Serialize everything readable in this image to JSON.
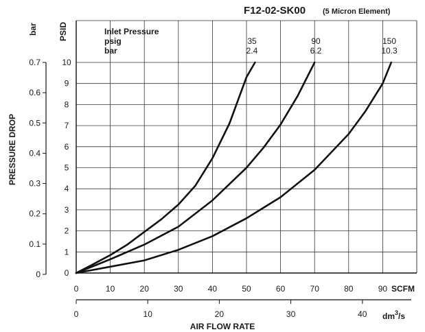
{
  "chart_data": {
    "type": "line",
    "title": "F12-02-SK00",
    "subtitle": "(5 Micron Element)",
    "xlabel": "AIR FLOW RATE",
    "x_unit_primary": "SCFM",
    "x_unit_secondary": "dm3/s",
    "ylabel": "PRESSURE DROP",
    "y_unit_left": "bar",
    "y_unit_right": "PSID",
    "xlim": [
      0,
      100
    ],
    "ylim": [
      0,
      10
    ],
    "x_ticks": [
      "0",
      "10",
      "20",
      "30",
      "40",
      "50",
      "60",
      "70",
      "80",
      "90"
    ],
    "x2_ticks": [
      "0",
      "10",
      "20",
      "30",
      "40"
    ],
    "y_ticks_psid": [
      "0",
      "1",
      "2",
      "3",
      "4",
      "5",
      "6",
      "7",
      "8",
      "9",
      "10"
    ],
    "y_ticks_bar": [
      "0",
      "0.1",
      "0.2",
      "0.3",
      "0.4",
      "0.5",
      "0.6",
      "0.7"
    ],
    "grid": true,
    "legend": {
      "heading": "Inlet Pressure",
      "row1": "psig",
      "row2": "bar"
    },
    "series": [
      {
        "psig": "35",
        "bar": "2.4",
        "x": [
          0,
          5,
          10,
          15,
          20,
          25,
          30,
          35,
          40,
          45,
          50,
          52.5
        ],
        "y": [
          0,
          0.42,
          0.85,
          1.35,
          1.95,
          2.55,
          3.25,
          4.15,
          5.45,
          7.1,
          9.3,
          10
        ]
      },
      {
        "psig": "90",
        "bar": "6.2",
        "x": [
          0,
          10,
          20,
          30,
          40,
          50,
          55,
          60,
          65,
          70
        ],
        "y": [
          0,
          0.65,
          1.35,
          2.2,
          3.45,
          5.0,
          5.95,
          7.05,
          8.4,
          10
        ]
      },
      {
        "psig": "150",
        "bar": "10.3",
        "x": [
          0,
          10,
          20,
          30,
          40,
          50,
          60,
          70,
          80,
          85,
          90,
          92.5
        ],
        "y": [
          0,
          0.3,
          0.6,
          1.1,
          1.75,
          2.6,
          3.6,
          4.9,
          6.6,
          7.7,
          9.0,
          10
        ]
      }
    ]
  }
}
